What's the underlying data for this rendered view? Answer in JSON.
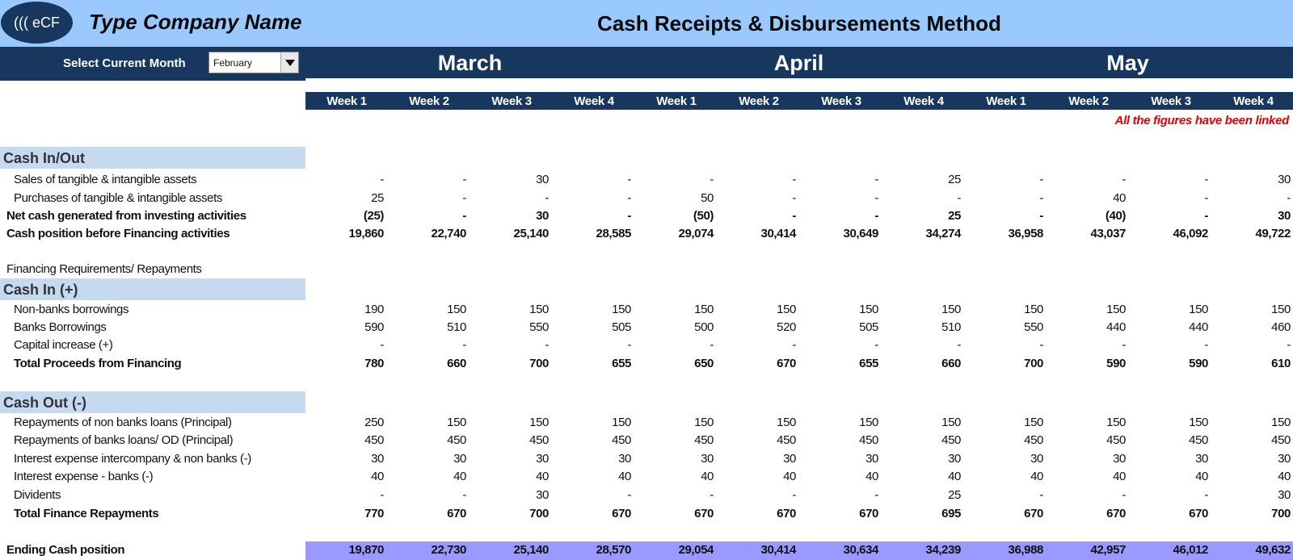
{
  "header": {
    "logo_text": "((( eCF",
    "company_name": "Type Company Name",
    "title": "Cash Receipts & Disbursements Method"
  },
  "selector": {
    "label": "Select Current Month",
    "value": "February"
  },
  "months": [
    "March",
    "April",
    "May"
  ],
  "weeks": [
    "Week 1",
    "Week 2",
    "Week 3",
    "Week 4",
    "Week 1",
    "Week 2",
    "Week 3",
    "Week 4",
    "Week 1",
    "Week 2",
    "Week 3",
    "Week 4"
  ],
  "note": "All the figures have been linked",
  "sections": {
    "cash_in_out": "Cash In/Out",
    "cash_in": "Cash In (+)",
    "cash_out": "Cash Out (-)"
  },
  "financing_heading": "Financing Requirements/ Repayments",
  "rows": {
    "sales_assets": {
      "label": "Sales of tangible & intangible assets",
      "values": [
        "-",
        "-",
        "30",
        "-",
        "-",
        "-",
        "-",
        "25",
        "-",
        "-",
        "-",
        "30"
      ]
    },
    "purchases_assets": {
      "label": "Purchases of tangible & intangible assets",
      "values": [
        "25",
        "-",
        "-",
        "-",
        "50",
        "-",
        "-",
        "-",
        "-",
        "40",
        "-",
        "-"
      ]
    },
    "net_investing": {
      "label": "Net cash generated from investing activities",
      "values": [
        "(25)",
        "-",
        "30",
        "-",
        "(50)",
        "-",
        "-",
        "25",
        "-",
        "(40)",
        "-",
        "30"
      ]
    },
    "cash_before_financing": {
      "label": "Cash position before Financing activities",
      "values": [
        "19,860",
        "22,740",
        "25,140",
        "28,585",
        "29,074",
        "30,414",
        "30,649",
        "34,274",
        "36,958",
        "43,037",
        "46,092",
        "49,722"
      ]
    },
    "non_bank_borrowings": {
      "label": "Non-banks borrowings",
      "values": [
        "190",
        "150",
        "150",
        "150",
        "150",
        "150",
        "150",
        "150",
        "150",
        "150",
        "150",
        "150"
      ]
    },
    "bank_borrowings": {
      "label": "Banks Borrowings",
      "values": [
        "590",
        "510",
        "550",
        "505",
        "500",
        "520",
        "505",
        "510",
        "550",
        "440",
        "440",
        "460"
      ]
    },
    "capital_increase": {
      "label": "Capital increase (+)",
      "values": [
        "-",
        "-",
        "-",
        "-",
        "-",
        "-",
        "-",
        "-",
        "-",
        "-",
        "-",
        "-"
      ]
    },
    "total_proceeds": {
      "label": "Total Proceeds from Financing",
      "values": [
        "780",
        "660",
        "700",
        "655",
        "650",
        "670",
        "655",
        "660",
        "700",
        "590",
        "590",
        "610"
      ]
    },
    "repay_non_bank": {
      "label": "Repayments of non banks loans  (Principal)",
      "values": [
        "250",
        "150",
        "150",
        "150",
        "150",
        "150",
        "150",
        "150",
        "150",
        "150",
        "150",
        "150"
      ]
    },
    "repay_bank": {
      "label": "Repayments of banks loans/ OD  (Principal)",
      "values": [
        "450",
        "450",
        "450",
        "450",
        "450",
        "450",
        "450",
        "450",
        "450",
        "450",
        "450",
        "450"
      ]
    },
    "interest_intercompany": {
      "label": "Interest expense intercompany & non banks (-)",
      "values": [
        "30",
        "30",
        "30",
        "30",
        "30",
        "30",
        "30",
        "30",
        "30",
        "30",
        "30",
        "30"
      ]
    },
    "interest_banks": {
      "label": "Interest expense - banks (-)",
      "values": [
        "40",
        "40",
        "40",
        "40",
        "40",
        "40",
        "40",
        "40",
        "40",
        "40",
        "40",
        "40"
      ]
    },
    "dividends": {
      "label": "Dividents",
      "values": [
        "-",
        "-",
        "30",
        "-",
        "-",
        "-",
        "-",
        "25",
        "-",
        "-",
        "-",
        "30"
      ]
    },
    "total_repayments": {
      "label": "Total Finance Repayments",
      "values": [
        "770",
        "670",
        "700",
        "670",
        "670",
        "670",
        "670",
        "695",
        "670",
        "670",
        "670",
        "700"
      ]
    },
    "ending_cash": {
      "label": "Ending Cash position",
      "values": [
        "19,870",
        "22,730",
        "25,140",
        "28,570",
        "29,054",
        "30,414",
        "30,634",
        "34,239",
        "36,988",
        "42,957",
        "46,012",
        "49,632"
      ]
    }
  }
}
